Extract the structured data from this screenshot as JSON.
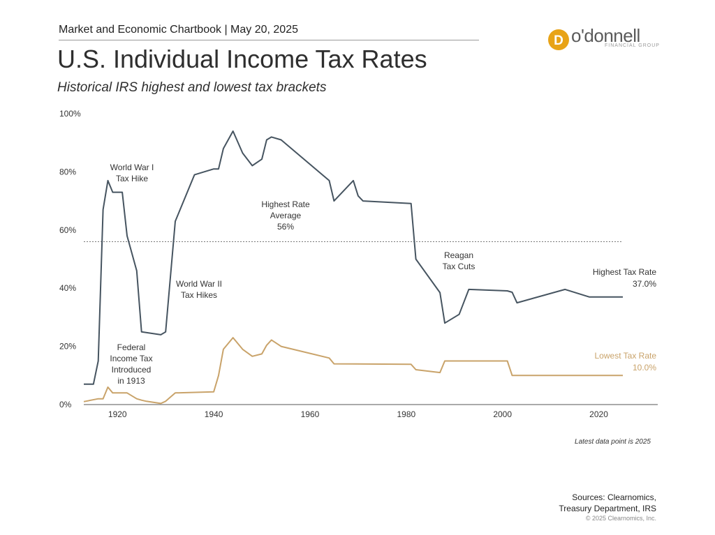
{
  "header": {
    "label": "Market and Economic Chartbook | May 20, 2025",
    "logo_text": "o'donnell",
    "logo_sub": "FINANCIAL GROUP",
    "logo_mark": "D",
    "brand_color": "#e8a317"
  },
  "title": "U.S. Individual Income Tax Rates",
  "subtitle": "Historical IRS highest and lowest tax brackets",
  "footer": {
    "note": "Latest data point is 2025",
    "sources_line1": "Sources: Clearnomics,",
    "sources_line2": "Treasury Department, IRS",
    "copyright": "© 2025 Clearnomics, Inc."
  },
  "chart_data": {
    "type": "line",
    "xlim": [
      1913,
      2025
    ],
    "ylim": [
      0,
      100
    ],
    "yticks": [
      0,
      20,
      40,
      60,
      80,
      100
    ],
    "ytick_labels": [
      "0%",
      "20%",
      "40%",
      "60%",
      "80%",
      "100%"
    ],
    "xticks": [
      1920,
      1940,
      1960,
      1980,
      2000,
      2020
    ],
    "xtick_labels": [
      "1920",
      "1940",
      "1960",
      "1980",
      "2000",
      "2020"
    ],
    "grid": false,
    "average_line": {
      "value": 56,
      "style": "dotted"
    },
    "series": [
      {
        "name": "Highest Tax Rate",
        "color": "#465460",
        "label_lines": [
          "Highest Tax Rate",
          "37.0%"
        ],
        "x": [
          1913,
          1915,
          1916,
          1917,
          1918,
          1919,
          1921,
          1922,
          1924,
          1925,
          1929,
          1930,
          1932,
          1936,
          1940,
          1941,
          1942,
          1944,
          1946,
          1948,
          1950,
          1951,
          1952,
          1954,
          1964,
          1965,
          1968,
          1969,
          1970,
          1971,
          1981,
          1982,
          1987,
          1988,
          1991,
          1993,
          2001,
          2002,
          2003,
          2013,
          2018,
          2025
        ],
        "y": [
          7,
          7,
          15,
          67,
          77,
          73,
          73,
          58,
          46,
          25,
          24,
          25,
          63,
          79,
          81,
          81,
          88,
          94,
          86.45,
          82.13,
          84.36,
          91,
          92,
          91,
          77,
          70,
          75.25,
          77,
          71.75,
          70,
          69.13,
          50,
          38.5,
          28,
          31,
          39.6,
          39.1,
          38.6,
          35,
          39.6,
          37,
          37
        ]
      },
      {
        "name": "Lowest Tax Rate",
        "color": "#c9a36a",
        "label_lines": [
          "Lowest Tax Rate",
          "10.0%"
        ],
        "x": [
          1913,
          1916,
          1917,
          1918,
          1919,
          1922,
          1924,
          1925,
          1926,
          1929,
          1930,
          1932,
          1940,
          1941,
          1942,
          1944,
          1946,
          1948,
          1950,
          1951,
          1952,
          1954,
          1964,
          1965,
          1981,
          1982,
          1987,
          1988,
          2001,
          2002,
          2025
        ],
        "y": [
          1,
          2,
          2,
          6,
          4,
          4,
          2,
          1.5,
          1.125,
          0.375,
          1.125,
          4,
          4.4,
          10,
          19,
          23,
          19,
          16.6,
          17.4,
          20.4,
          22.2,
          20,
          16,
          14,
          13.825,
          12,
          11,
          15,
          15,
          10,
          10
        ]
      }
    ],
    "annotations": [
      {
        "id": "ww1",
        "lines": [
          "World War I",
          "Tax Hike"
        ]
      },
      {
        "id": "ww2",
        "lines": [
          "World War II",
          "Tax Hikes"
        ]
      },
      {
        "id": "federal",
        "lines": [
          "Federal",
          "Income Tax",
          "Introduced",
          "in 1913"
        ]
      },
      {
        "id": "average",
        "lines": [
          "Highest Rate",
          "Average",
          "56%"
        ]
      },
      {
        "id": "reagan",
        "lines": [
          "Reagan",
          "Tax Cuts"
        ]
      }
    ]
  }
}
